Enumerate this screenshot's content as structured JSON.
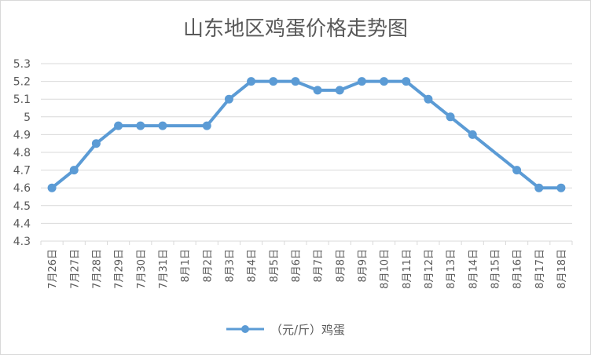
{
  "chart_data": {
    "type": "line",
    "title": "山东地区鸡蛋价格走势图",
    "categories": [
      "7月26日",
      "7月27日",
      "7月28日",
      "7月29日",
      "7月30日",
      "7月31日",
      "8月1日",
      "8月2日",
      "8月3日",
      "8月4日",
      "8月5日",
      "8月6日",
      "8月7日",
      "8月8日",
      "8月9日",
      "8月10日",
      "8月11日",
      "8月12日",
      "8月13日",
      "8月14日",
      "8月15日",
      "8月16日",
      "8月17日",
      "8月18日"
    ],
    "series": [
      {
        "name": "（元/斤）鸡蛋",
        "color": "#5b9bd5",
        "values": [
          4.6,
          4.7,
          4.85,
          4.95,
          4.95,
          4.95,
          null,
          4.95,
          5.1,
          5.2,
          5.2,
          5.2,
          5.15,
          5.15,
          5.2,
          5.2,
          5.2,
          5.1,
          5.0,
          4.9,
          null,
          4.7,
          4.6,
          4.6
        ]
      }
    ],
    "ylim": [
      4.3,
      5.3
    ],
    "yticks": [
      "4.3",
      "4.4",
      "4.5",
      "4.6",
      "4.7",
      "4.8",
      "4.9",
      "5",
      "5.1",
      "5.2",
      "5.3"
    ],
    "grid": true,
    "legend": "bottom",
    "xlabel": "",
    "ylabel": ""
  }
}
